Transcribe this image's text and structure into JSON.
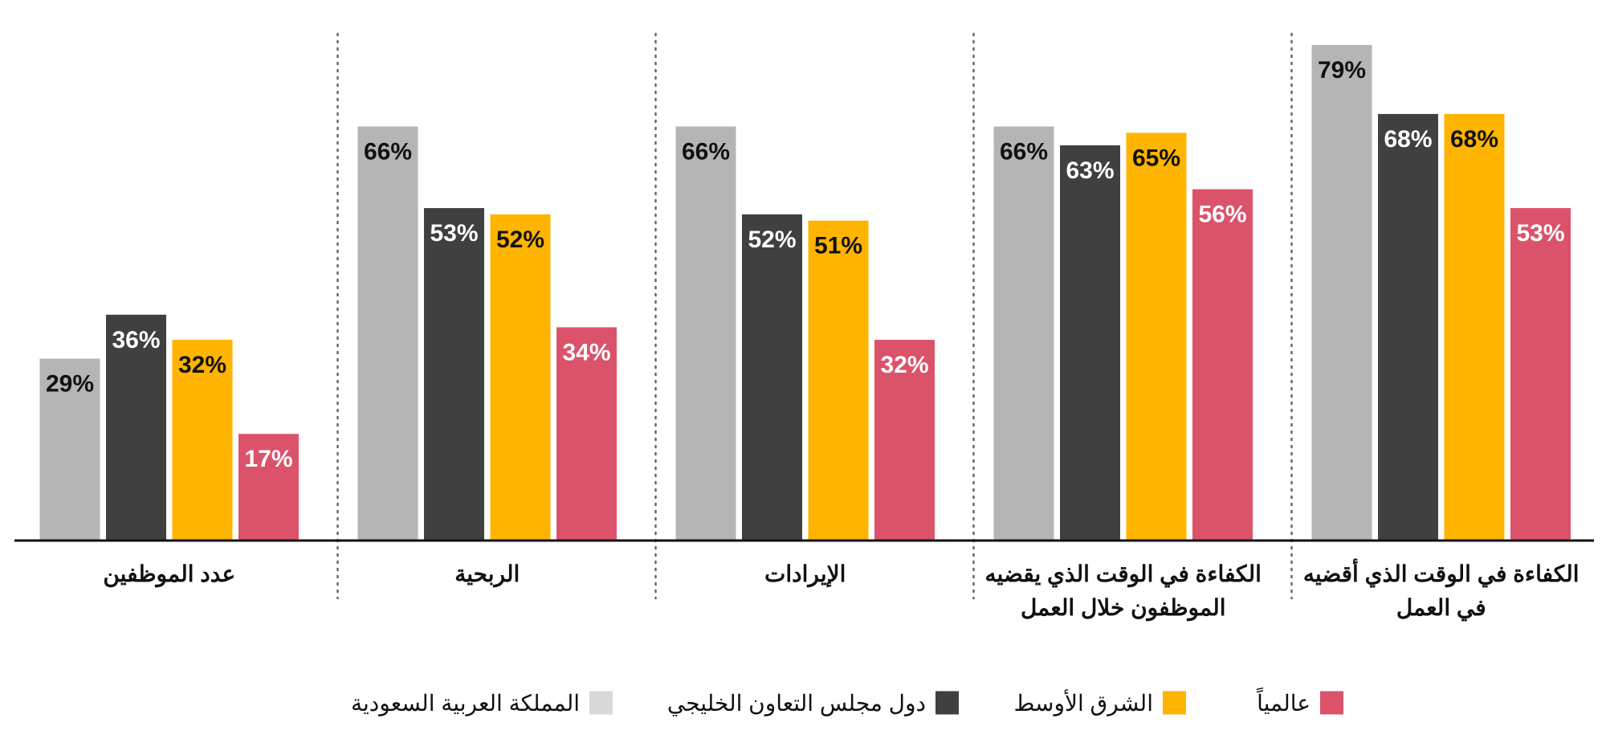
{
  "chart_data": {
    "type": "bar",
    "direction": "rtl",
    "categories": [
      [
        "الكفاءة في الوقت الذي أقضيه",
        "في العمل"
      ],
      [
        "الكفاءة في الوقت الذي يقضيه",
        "الموظفون خلال العمل"
      ],
      [
        "الإيرادات"
      ],
      [
        "الربحية"
      ],
      [
        "عدد الموظفين"
      ]
    ],
    "series": [
      {
        "name": "المملكة العربية السعودية",
        "color": "#b5b5b5",
        "label_color": "#111111",
        "values": [
          79,
          66,
          66,
          66,
          29
        ]
      },
      {
        "name": "دول مجلس التعاون الخليجي",
        "color": "#404040",
        "label_color": "#ffffff",
        "values": [
          68,
          63,
          52,
          53,
          36
        ]
      },
      {
        "name": "الشرق الأوسط",
        "color": "#ffb400",
        "label_color": "#111111",
        "values": [
          68,
          65,
          51,
          52,
          32
        ]
      },
      {
        "name": "عالمياً",
        "color": "#db536a",
        "label_color": "#ffffff",
        "values": [
          53,
          56,
          32,
          34,
          17
        ]
      }
    ],
    "value_suffix": "%",
    "ylim": [
      0,
      79
    ],
    "grid": false,
    "legend_position": "bottom",
    "legend_order": [
      "عالمياً",
      "الشرق الأوسط",
      "دول مجلس التعاون الخليجي",
      "المملكة العربية السعودية"
    ],
    "legend_swatch_colors": {
      "المملكة العربية السعودية": "#d9d9d9",
      "دول مجلس التعاون الخليجي": "#404040",
      "الشرق الأوسط": "#ffb400",
      "عالمياً": "#db536a"
    }
  }
}
